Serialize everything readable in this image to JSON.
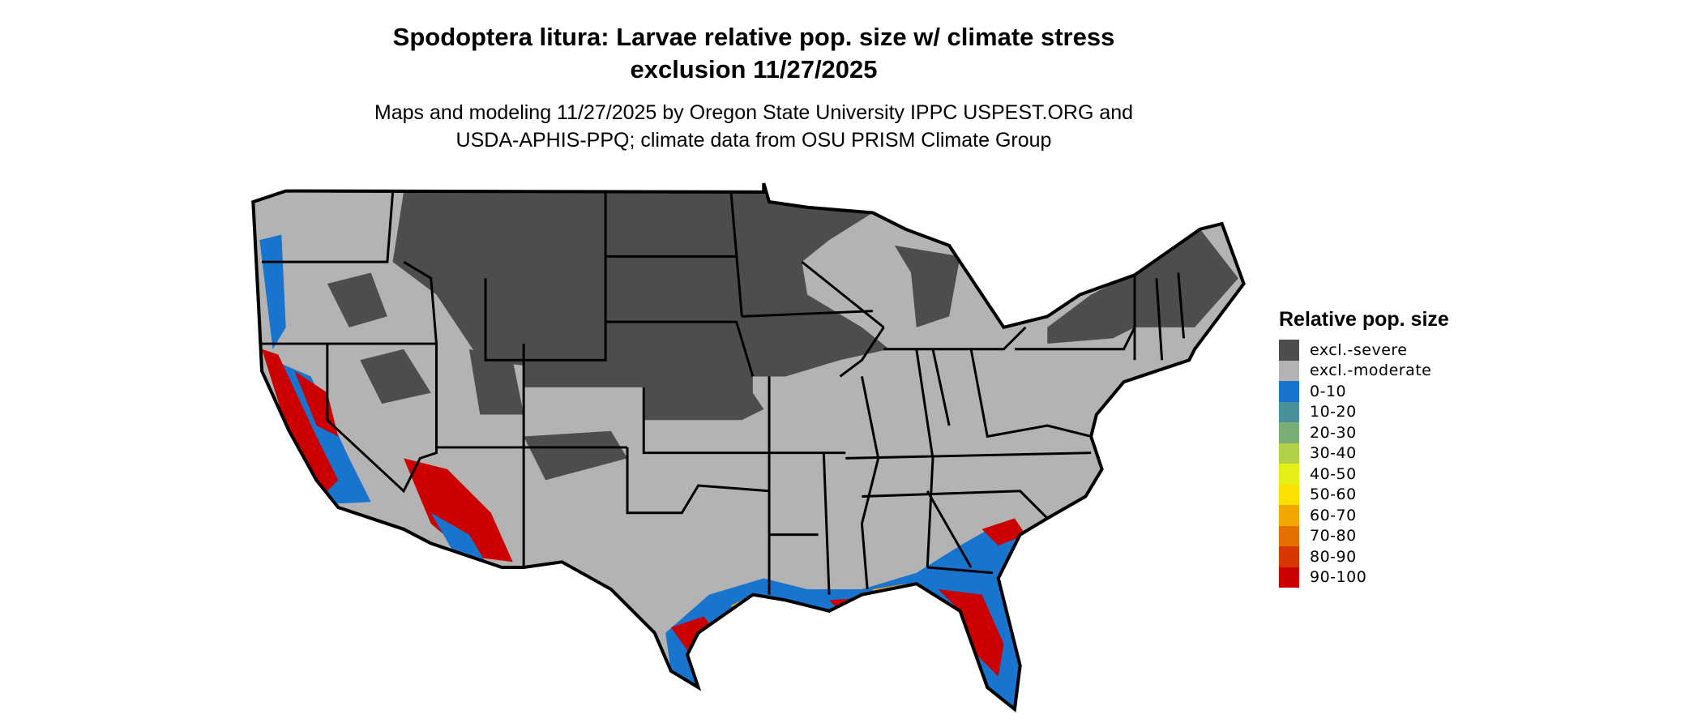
{
  "title": {
    "line1": "Spodoptera litura: Larvae relative pop. size w/ climate stress",
    "line2": "exclusion 11/27/2025"
  },
  "subtitle": {
    "line1": "Maps and modeling 11/27/2025 by Oregon State University IPPC USPEST.ORG and",
    "line2": "USDA-APHIS-PPQ; climate data from OSU PRISM Climate Group"
  },
  "legend": {
    "title": "Relative pop. size",
    "items": [
      {
        "label": "excl.-severe",
        "color": "#4d4d4d"
      },
      {
        "label": "excl.-moderate",
        "color": "#b3b3b3"
      },
      {
        "label": "0-10",
        "color": "#1874cd"
      },
      {
        "label": "10-20",
        "color": "#4a919e"
      },
      {
        "label": "20-30",
        "color": "#7bae74"
      },
      {
        "label": "30-40",
        "color": "#b2d147"
      },
      {
        "label": "40-50",
        "color": "#e5f016"
      },
      {
        "label": "50-60",
        "color": "#fbe100"
      },
      {
        "label": "60-70",
        "color": "#f0a800"
      },
      {
        "label": "70-80",
        "color": "#e57000"
      },
      {
        "label": "80-90",
        "color": "#da3700"
      },
      {
        "label": "90-100",
        "color": "#cd0000"
      }
    ]
  },
  "map": {
    "region": "Contiguous United States",
    "base_color": "#b3b3b3",
    "border_color": "#000000"
  }
}
